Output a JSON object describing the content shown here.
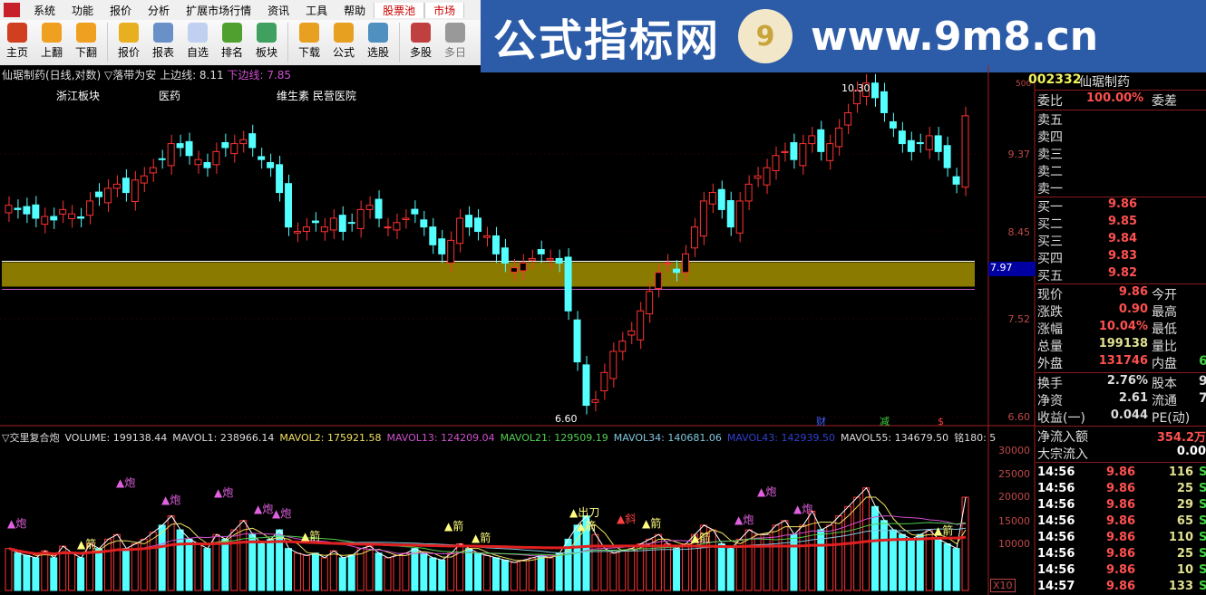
{
  "menu": [
    "系统",
    "功能",
    "报价",
    "分析",
    "扩展市场行情",
    "资讯",
    "工具",
    "帮助",
    "股票池",
    "市场"
  ],
  "toolbar": [
    {
      "label": "主页",
      "icon": "home-icon",
      "color": "#d04020"
    },
    {
      "label": "上翻",
      "icon": "arrow-up-icon",
      "color": "#f0a020"
    },
    {
      "label": "下翻",
      "icon": "arrow-down-icon",
      "color": "#f0a020"
    },
    {
      "label": "报价",
      "icon": "yen-icon",
      "color": "#e8b020"
    },
    {
      "label": "报表",
      "icon": "report-icon",
      "color": "#6a90c8"
    },
    {
      "label": "自选",
      "icon": "f6-icon",
      "color": "#c0d0f0"
    },
    {
      "label": "排名",
      "icon": "rank-icon",
      "color": "#50a030"
    },
    {
      "label": "板块",
      "icon": "blocks-icon",
      "color": "#40a060"
    },
    {
      "label": "下载",
      "icon": "download-icon",
      "color": "#e8a020"
    },
    {
      "label": "公式",
      "icon": "formula-icon",
      "color": "#e8a020"
    },
    {
      "label": "选股",
      "icon": "select-stock-icon",
      "color": "#5090c0"
    },
    {
      "label": "多股",
      "icon": "multi-stock-icon",
      "color": "#c04040"
    },
    {
      "label": "多日",
      "icon": "clock-icon",
      "color": "#999999"
    }
  ],
  "banner": {
    "title": "公式指标网",
    "seal": "9",
    "url": "www.9m8.cn"
  },
  "info": {
    "title": "仙琚制药(日线,对数) ▽落带为安",
    "upper": "上边线: 8.11",
    "lower": "下边线: 7.85"
  },
  "tags": [
    "浙江板块",
    "医药",
    "维生素 民营医院"
  ],
  "markers": {
    "high": "10.30",
    "low": "6.60",
    "cai": "财",
    "jian": "减",
    "dollar": "$"
  },
  "price_axis": [
    "9.37",
    "8.45",
    "7.52",
    "6.60"
  ],
  "cursor_price": "7.97",
  "vol_axis": [
    "30000",
    "25000",
    "20000",
    "15000",
    "10000"
  ],
  "vol_scale": "X10",
  "vinfo": [
    {
      "t": "▽交里复合炮",
      "c": "#dddddd"
    },
    {
      "t": "VOLUME: 199138.44",
      "c": "#dddddd"
    },
    {
      "t": "MAVOL1: 238966.14",
      "c": "#dddddd"
    },
    {
      "t": "MAVOL2: 175921.58",
      "c": "#f0e060"
    },
    {
      "t": "MAVOL13: 124209.04",
      "c": "#d050d0"
    },
    {
      "t": "MAVOL21: 129509.19",
      "c": "#50d050"
    },
    {
      "t": "MAVOL34: 140681.06",
      "c": "#80c8e0"
    },
    {
      "t": "MAVOL43: 142939.50",
      "c": "#3040d0"
    },
    {
      "t": "MAVOL55: 134679.50",
      "c": "#dddddd"
    },
    {
      "t": "铭180: 5",
      "c": "#dddddd"
    }
  ],
  "vol_labels": [
    "炮",
    "炮",
    "炮",
    "炮",
    "炮",
    "炮",
    "箭",
    "箭",
    "箭",
    "箭",
    "出刀",
    "箭",
    "斜",
    "箭",
    "箭",
    "炮",
    "炮",
    "炮",
    "箭"
  ],
  "panel": {
    "code": "002332",
    "name": "仙琚制药",
    "small": "500",
    "weibi_label": "委比",
    "weibi": "100.00%",
    "weicha_label": "委差",
    "sells": [
      "卖五",
      "卖四",
      "卖三",
      "卖二",
      "卖一"
    ],
    "buys": [
      {
        "l": "买一",
        "p": "9.86"
      },
      {
        "l": "买二",
        "p": "9.85"
      },
      {
        "l": "买三",
        "p": "9.84"
      },
      {
        "l": "买四",
        "p": "9.83"
      },
      {
        "l": "买五",
        "p": "9.82"
      }
    ],
    "quote": [
      {
        "l": "现价",
        "v": "9.86",
        "c": "#ff5050",
        "r": "今开"
      },
      {
        "l": "涨跌",
        "v": "0.90",
        "c": "#ff5050",
        "r": "最高"
      },
      {
        "l": "涨幅",
        "v": "10.04%",
        "c": "#ff5050",
        "r": "最低"
      },
      {
        "l": "总量",
        "v": "199138",
        "c": "#e0e090",
        "r": "量比"
      },
      {
        "l": "外盘",
        "v": "131746",
        "c": "#ff5050",
        "r": "内盘",
        "rv": "6"
      }
    ],
    "fund": [
      {
        "l": "换手",
        "v": "2.76%",
        "r": "股本",
        "rv": "9."
      },
      {
        "l": "净资",
        "v": "2.61",
        "r": "流通",
        "rv": "7."
      },
      {
        "l": "收益(一)",
        "v": "0.044",
        "r": "PE(动)",
        "rv": ""
      }
    ],
    "netflow_label": "净流入额",
    "netflow": "354.2万",
    "block_label": "大宗流入",
    "block": "0.00",
    "ticks": [
      {
        "t": "14:56",
        "p": "9.86",
        "v": "116"
      },
      {
        "t": "14:56",
        "p": "9.86",
        "v": "25"
      },
      {
        "t": "14:56",
        "p": "9.86",
        "v": "29"
      },
      {
        "t": "14:56",
        "p": "9.86",
        "v": "65"
      },
      {
        "t": "14:56",
        "p": "9.86",
        "v": "110"
      },
      {
        "t": "14:56",
        "p": "9.86",
        "v": "25"
      },
      {
        "t": "14:56",
        "p": "9.86",
        "v": "10"
      },
      {
        "t": "14:57",
        "p": "9.86",
        "v": "133"
      }
    ],
    "tick_side": "S"
  },
  "chart_data": {
    "type": "candlestick",
    "price_scale": "log",
    "closes": [
      8.75,
      8.7,
      8.65,
      8.6,
      8.62,
      8.58,
      8.7,
      8.65,
      8.6,
      8.8,
      8.85,
      8.95,
      9.0,
      8.9,
      9.05,
      9.1,
      9.2,
      9.3,
      9.5,
      9.45,
      9.35,
      9.3,
      9.2,
      9.4,
      9.45,
      9.5,
      9.55,
      9.45,
      9.3,
      9.2,
      8.9,
      8.5,
      8.45,
      8.5,
      8.55,
      8.5,
      8.6,
      8.45,
      8.55,
      8.7,
      8.75,
      8.6,
      8.5,
      8.55,
      8.6,
      8.65,
      8.5,
      8.3,
      8.2,
      8.35,
      8.6,
      8.5,
      8.45,
      8.4,
      8.2,
      8.1,
      8.05,
      8.1,
      8.15,
      8.2,
      8.15,
      8.1,
      7.6,
      7.1,
      6.7,
      6.75,
      7.0,
      7.2,
      7.3,
      7.4,
      7.6,
      7.8,
      8.0,
      8.1,
      8.0,
      8.2,
      8.5,
      8.8,
      8.9,
      8.7,
      8.5,
      8.8,
      9.0,
      9.1,
      9.2,
      9.35,
      9.4,
      9.3,
      9.5,
      9.6,
      9.4,
      9.5,
      9.7,
      9.9,
      10.2,
      10.3,
      10.1,
      9.9,
      9.7,
      9.5,
      9.4,
      9.5,
      9.6,
      9.4,
      9.2,
      9.0,
      9.86
    ],
    "volumes": [
      9000,
      8000,
      7500,
      7000,
      8500,
      7000,
      9500,
      8000,
      7000,
      10000,
      9000,
      11000,
      12000,
      9000,
      10000,
      11000,
      12500,
      14000,
      16000,
      13000,
      11000,
      10000,
      9000,
      12000,
      11000,
      13000,
      15000,
      12000,
      10000,
      11000,
      13000,
      9000,
      8000,
      7500,
      8000,
      7000,
      8500,
      7000,
      7500,
      9000,
      9500,
      8000,
      7000,
      7500,
      8000,
      9000,
      8000,
      7000,
      6500,
      8000,
      10000,
      9000,
      8000,
      7500,
      7000,
      6500,
      6000,
      6500,
      7000,
      7500,
      7000,
      8000,
      11000,
      14000,
      16000,
      12000,
      9000,
      8000,
      8500,
      9000,
      10000,
      11000,
      12000,
      10000,
      9000,
      10000,
      12000,
      14000,
      13000,
      10000,
      9000,
      11000,
      13000,
      12000,
      12000,
      14000,
      15000,
      12000,
      14000,
      17000,
      13000,
      14000,
      16000,
      18000,
      20000,
      22000,
      18000,
      15000,
      13000,
      12000,
      11000,
      12000,
      13000,
      11000,
      10000,
      9000,
      20000
    ],
    "band": [
      7.85,
      8.11
    ]
  }
}
